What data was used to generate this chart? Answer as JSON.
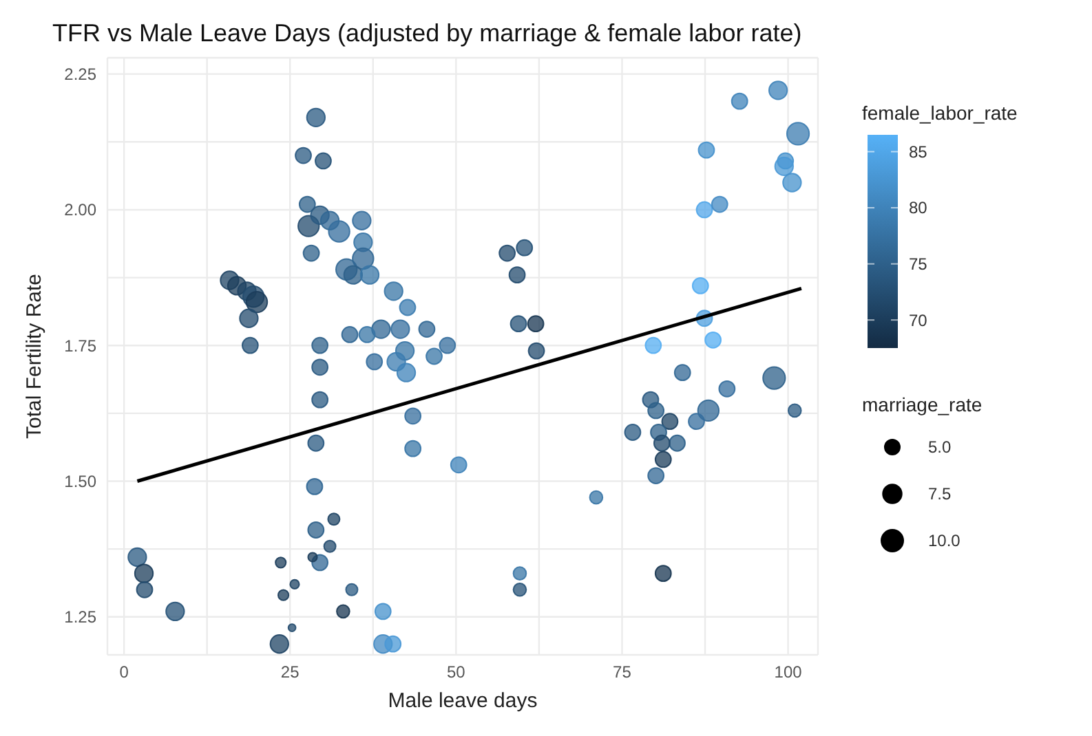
{
  "chart_data": {
    "type": "bubble",
    "title": "TFR vs Male Leave Days (adjusted by marriage & female labor rate)",
    "xlabel": "Male leave days",
    "ylabel": "Total Fertility Rate",
    "clabel": "female_labor_rate",
    "legend_title": "marriage_rate",
    "grid": true,
    "xlim": [
      -2.5,
      104.5
    ],
    "xticks": [
      0,
      {
        "value": 12.5,
        "label": null
      },
      25,
      {
        "value": 37.5,
        "label": null
      },
      50,
      {
        "value": 62.5,
        "label": null
      },
      75,
      {
        "value": 87.5,
        "label": null
      },
      100
    ],
    "ylim": [
      1.18,
      2.28
    ],
    "yticks": [
      {
        "value": 1.25,
        "label": "1.25"
      },
      {
        "value": 1.375,
        "label": null
      },
      {
        "value": 1.5,
        "label": "1.50"
      },
      {
        "value": 1.625,
        "label": null
      },
      {
        "value": 1.75,
        "label": "1.75"
      },
      {
        "value": 1.875,
        "label": null
      },
      {
        "value": 2.0,
        "label": "2.00"
      },
      {
        "value": 2.125,
        "label": null
      },
      {
        "value": 2.25,
        "label": "2.25"
      }
    ],
    "clim": [
      67.5,
      86.5
    ],
    "cticks": [
      70,
      75,
      80,
      85
    ],
    "size_legend": [
      {
        "value": 5,
        "label": "5.0"
      },
      {
        "value": 7.5,
        "label": "7.5"
      },
      {
        "value": 10,
        "label": "10.0"
      }
    ],
    "series": [
      {
        "x": [
          2,
          3,
          3.1,
          7.7,
          15.9,
          17,
          18.5,
          19.5,
          20,
          18.8,
          19,
          28.9,
          27,
          30,
          27.6,
          27.8,
          29.5,
          31,
          32.4,
          28.2,
          35.8,
          36,
          36,
          33.5,
          34.5,
          37,
          40.6,
          42.7,
          41.6,
          38.7,
          36.6,
          34,
          29.5,
          42.3,
          41,
          48.7,
          45.6,
          46.7,
          42.5,
          37.7,
          29.5,
          43.5,
          43.5,
          50.4,
          29.5,
          28.9,
          28.7,
          28.9,
          31.6,
          31,
          29.5,
          28.4,
          23.6,
          25.7,
          24,
          34.3,
          33,
          25.3,
          23.4,
          39,
          39,
          40.5,
          57.7,
          60.3,
          59.2,
          59.4,
          62,
          62.1,
          92.7,
          98.5,
          101.5,
          87.7,
          99.6,
          99.4,
          100.6,
          87.4,
          89.7,
          86.8,
          87.4,
          88.7,
          79.7,
          84.1,
          97.9,
          90.8,
          101,
          88,
          86.2,
          79.3,
          80.1,
          76.6,
          82.2,
          80.5,
          83.3,
          81,
          81.2,
          80.1,
          71.1,
          59.6,
          59.6,
          81.2
        ],
        "values": [
          1.36,
          1.33,
          1.3,
          1.26,
          1.87,
          1.86,
          1.85,
          1.84,
          1.83,
          1.8,
          1.75,
          2.17,
          2.1,
          2.09,
          2.01,
          1.97,
          1.99,
          1.98,
          1.96,
          1.92,
          1.98,
          1.94,
          1.91,
          1.89,
          1.88,
          1.88,
          1.85,
          1.82,
          1.78,
          1.78,
          1.77,
          1.77,
          1.75,
          1.74,
          1.72,
          1.75,
          1.78,
          1.73,
          1.7,
          1.72,
          1.71,
          1.62,
          1.56,
          1.53,
          1.65,
          1.57,
          1.49,
          1.41,
          1.43,
          1.38,
          1.35,
          1.36,
          1.35,
          1.31,
          1.29,
          1.3,
          1.26,
          1.23,
          1.2,
          1.26,
          1.2,
          1.2,
          1.92,
          1.93,
          1.88,
          1.79,
          1.79,
          1.74,
          2.2,
          2.22,
          2.14,
          2.11,
          2.09,
          2.08,
          2.05,
          2.0,
          2.01,
          1.86,
          1.8,
          1.76,
          1.75,
          1.7,
          1.69,
          1.67,
          1.63,
          1.63,
          1.61,
          1.65,
          1.63,
          1.59,
          1.61,
          1.59,
          1.57,
          1.57,
          1.54,
          1.51,
          1.47,
          1.33,
          1.3,
          1.33
        ],
        "sizes": [
          6,
          6,
          4.5,
          6,
          6,
          6,
          6,
          8,
          8,
          6,
          4.5,
          6,
          4.5,
          4.5,
          4.5,
          8,
          6,
          6,
          8,
          4.5,
          6,
          6,
          8,
          8,
          6,
          6,
          6,
          4.5,
          6,
          6,
          4.5,
          4.5,
          4.5,
          6,
          6,
          4.5,
          4.5,
          4.5,
          6,
          4.5,
          4.5,
          4.5,
          4.5,
          4.5,
          4.5,
          4.5,
          4.5,
          4.5,
          2.5,
          2.5,
          4.5,
          1.5,
          2,
          1.5,
          2,
          2.5,
          3,
          1,
          6,
          4.5,
          6,
          4.5,
          4.5,
          4.5,
          4.5,
          4.5,
          4.5,
          4.5,
          4.5,
          6,
          9,
          4.5,
          4.5,
          6,
          6,
          4.5,
          4.5,
          4.5,
          4.5,
          4.5,
          4.5,
          4.5,
          9,
          4.5,
          3,
          8,
          4.5,
          4.5,
          4.5,
          4.5,
          4.5,
          4.5,
          4.5,
          4.5,
          4.5,
          4.5,
          3,
          3,
          3,
          4.5
        ],
        "colors": [
          "#2a5981",
          "#1c3d5b",
          "#234b6e",
          "#265277",
          "#1f4464",
          "#1c3d5b",
          "#1f4464",
          "#234b6e",
          "#1c3d5b",
          "#234b6e",
          "#265277",
          "#2a5981",
          "#2a5981",
          "#265277",
          "#2d608a",
          "#234b6e",
          "#2a5981",
          "#316794",
          "#356e9d",
          "#2d608a",
          "#356e9d",
          "#3875a6",
          "#316794",
          "#316794",
          "#2d608a",
          "#3875a6",
          "#3875a6",
          "#3c7cb0",
          "#356e9d",
          "#316794",
          "#3875a6",
          "#316794",
          "#2d608a",
          "#3875a6",
          "#3c7cb0",
          "#356e9d",
          "#316794",
          "#3875a6",
          "#3f83b9",
          "#356e9d",
          "#2a5981",
          "#356e9d",
          "#3875a6",
          "#3f83b9",
          "#2a5981",
          "#2a5981",
          "#316794",
          "#2d608a",
          "#1f4464",
          "#234b6e",
          "#316794",
          "#1c3d5b",
          "#1c3d5b",
          "#1f4464",
          "#1c3d5b",
          "#2a5981",
          "#183651",
          "#234b6e",
          "#1f4464",
          "#4691cc",
          "#438ac3",
          "#4a98d6",
          "#234b6e",
          "#265277",
          "#234b6e",
          "#265277",
          "#183651",
          "#234b6e",
          "#3f83b9",
          "#3f83b9",
          "#3c7cb0",
          "#4691cc",
          "#4691cc",
          "#4a98d6",
          "#4691cc",
          "#51a6e9",
          "#438ac3",
          "#54adf2",
          "#4d9fdf",
          "#54adf2",
          "#54adf2",
          "#316794",
          "#2d608a",
          "#356e9d",
          "#2a5981",
          "#316794",
          "#356e9d",
          "#2a5981",
          "#2d608a",
          "#2a5981",
          "#1f4464",
          "#2d608a",
          "#2d608a",
          "#234b6e",
          "#1c3d5b",
          "#316794",
          "#3875a6",
          "#3875a6",
          "#265277",
          "#183651"
        ],
        "cvalues": [
          74,
          70,
          72,
          73,
          71,
          70,
          71,
          72,
          70,
          72,
          73,
          74,
          74,
          73,
          75,
          72,
          74,
          76,
          77,
          75,
          77,
          78,
          76,
          76,
          75,
          78,
          78,
          79,
          77,
          76,
          78,
          76,
          75,
          78,
          79,
          77,
          76,
          78,
          80,
          77,
          74,
          77,
          78,
          80,
          74,
          74,
          76,
          75,
          71,
          72,
          76,
          70,
          70,
          71,
          70,
          74,
          69,
          72,
          71,
          82,
          81,
          83,
          72,
          73,
          72,
          73,
          69,
          72,
          80,
          80,
          79,
          82,
          82,
          83,
          82,
          85,
          81,
          86,
          84,
          86,
          86,
          76,
          75,
          77,
          74,
          76,
          77,
          74,
          75,
          74,
          71,
          75,
          75,
          72,
          70,
          76,
          78,
          78,
          73,
          69
        ]
      },
      {
        "type": "line",
        "color": "#000000",
        "x": [
          2,
          102
        ],
        "values": [
          1.5,
          1.855
        ]
      }
    ]
  }
}
